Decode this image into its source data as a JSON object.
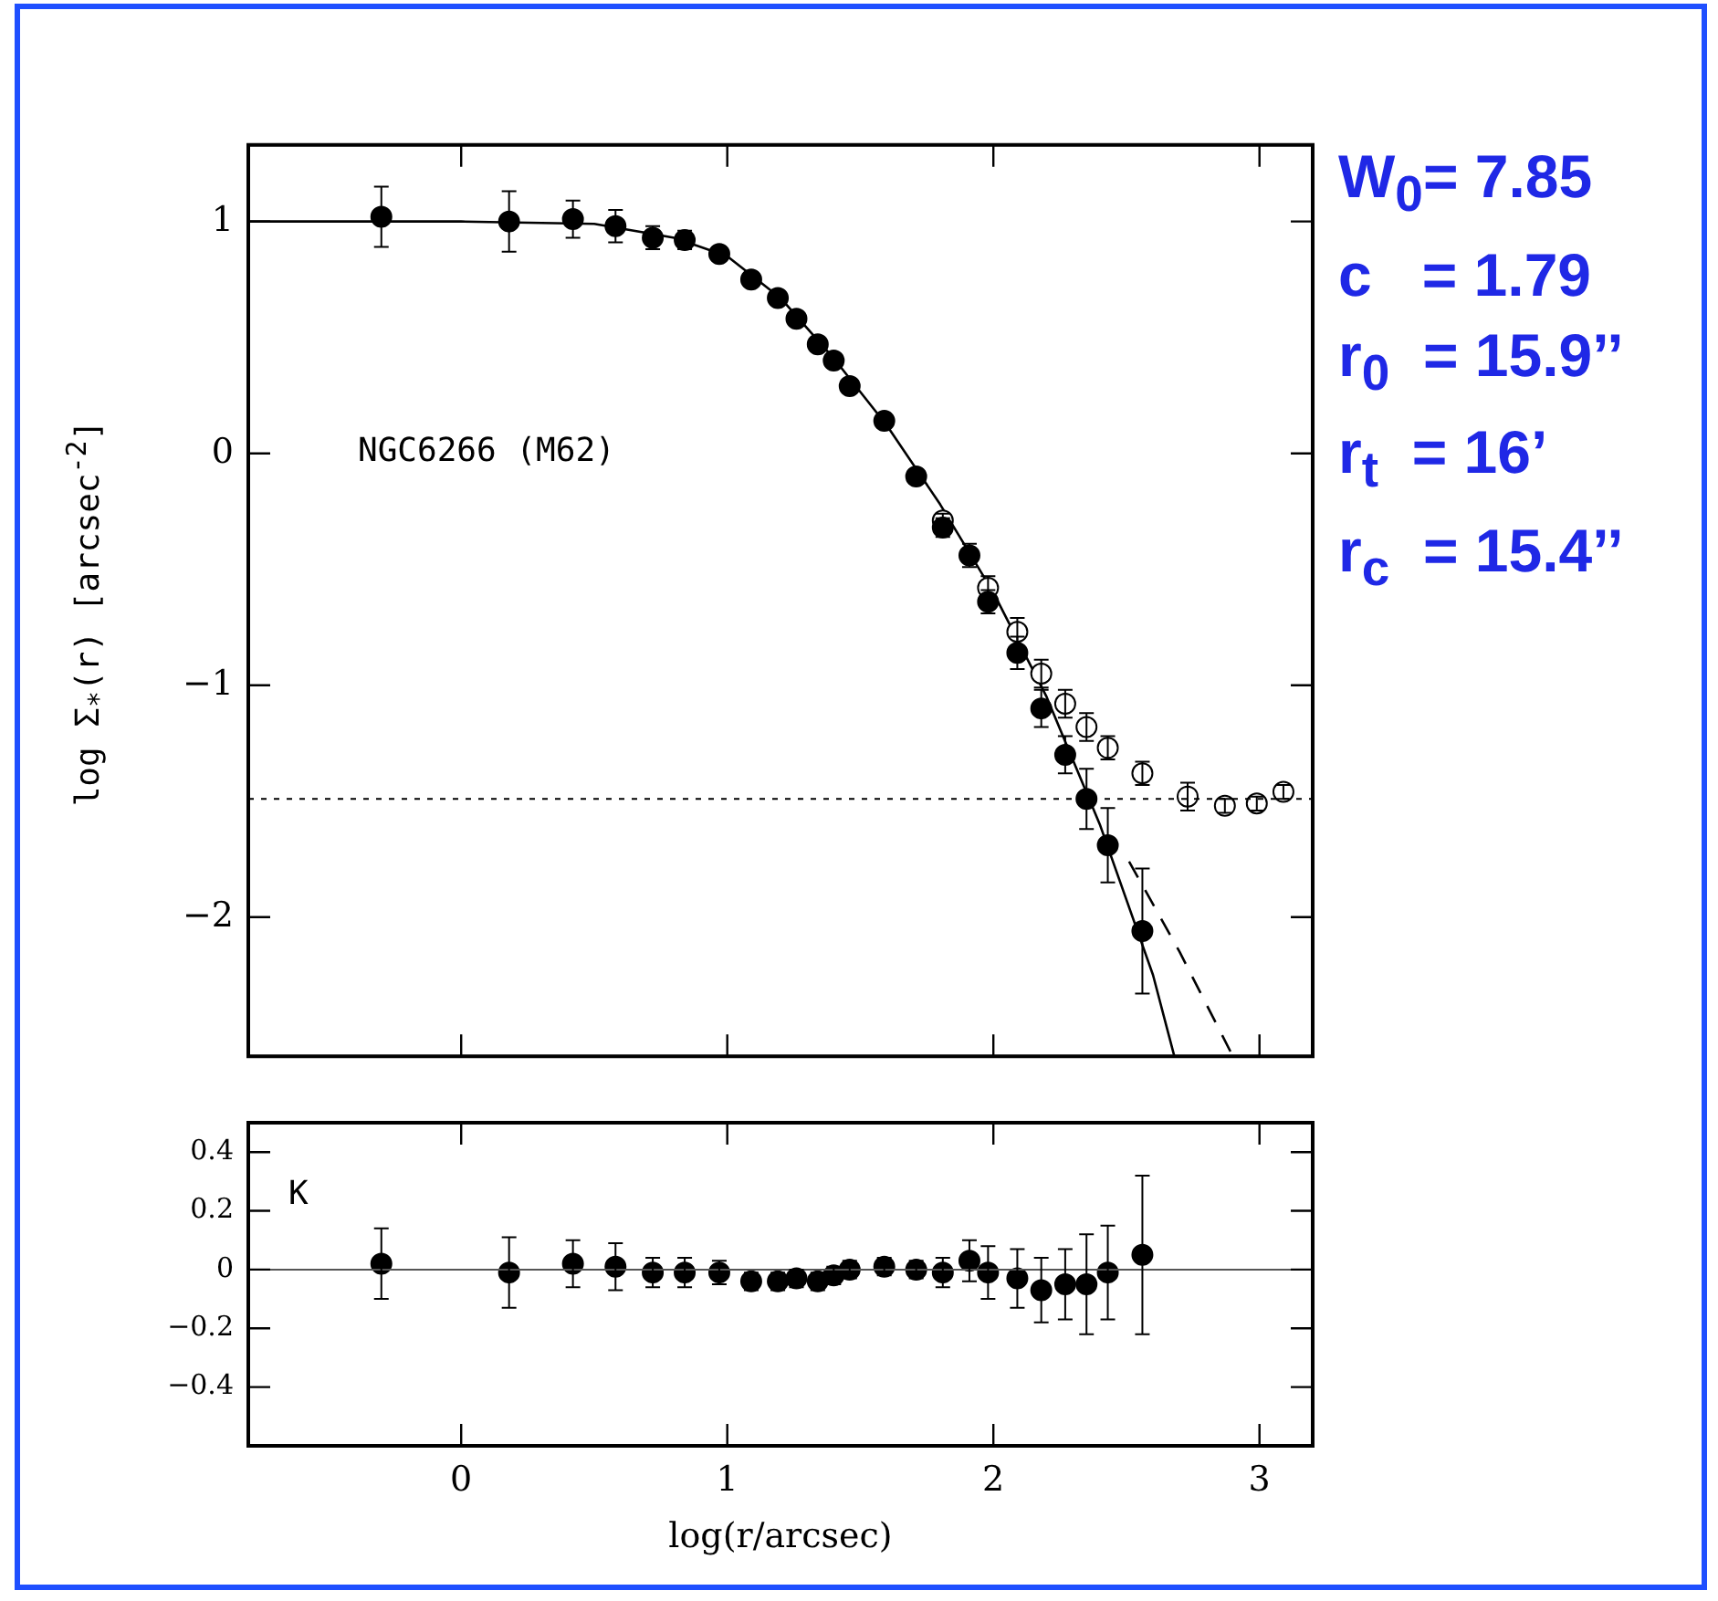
{
  "chart_data": [
    {
      "type": "scatter",
      "ylabel": "log Σ$_{*}$(r) [arcsec$^{-2}$]",
      "xlim": [
        -0.8,
        3.2
      ],
      "xticks": [
        0,
        1,
        2,
        3
      ],
      "ylim": [
        -2.6,
        1.33
      ],
      "yticks": [
        1,
        0,
        {
          "value": -1,
          "label": "−1"
        },
        {
          "value": -2,
          "label": "−2"
        }
      ],
      "tick_labels": "y",
      "marker": "circle",
      "grid": false,
      "legend": false,
      "annotations": [
        "NGC6266 (M62)",
        "W$_{0}$= 7.85",
        "c   = 1.79",
        "r$_{0}$  = 15.9’’",
        "r$_{t}$  = 16’",
        "r$_{c}$  = 15.4’’"
      ],
      "ref_lines": [
        {
          "axis": "y",
          "value": -1.49,
          "color": "#000000",
          "line_style": "dotted"
        }
      ],
      "series": [
        {
          "color": "#000000",
          "x": [
            -0.3,
            0.18,
            0.42,
            0.58,
            0.72,
            0.84,
            0.97,
            1.09,
            1.19,
            1.26,
            1.34,
            1.4,
            1.46,
            1.59,
            1.71,
            1.81,
            1.91,
            1.98,
            2.09,
            2.18,
            2.27,
            2.35,
            2.43,
            2.56
          ],
          "values": [
            1.02,
            1.0,
            1.01,
            0.98,
            0.93,
            0.92,
            0.86,
            0.75,
            0.67,
            0.58,
            0.47,
            0.4,
            0.29,
            0.14,
            -0.1,
            -0.32,
            -0.44,
            -0.64,
            -0.86,
            -1.1,
            -1.3,
            -1.49,
            -1.69,
            -2.06
          ],
          "errors": [
            0.13,
            0.13,
            0.08,
            0.07,
            0.05,
            0.04,
            0.03,
            0.03,
            0.03,
            0.03,
            0.03,
            0.03,
            0.03,
            0.03,
            0.03,
            0.04,
            0.05,
            0.05,
            0.07,
            0.08,
            0.08,
            0.13,
            0.16,
            0.27
          ]
        },
        {
          "color": "#000000",
          "x": [
            1.81,
            1.98,
            2.09,
            2.18,
            2.27,
            2.35,
            2.43,
            2.56,
            2.73,
            2.87,
            2.99,
            3.09
          ],
          "values": [
            -0.29,
            -0.58,
            -0.77,
            -0.95,
            -1.08,
            -1.18,
            -1.27,
            -1.38,
            -1.48,
            -1.52,
            -1.51,
            -1.46
          ],
          "errors": [
            0.03,
            0.05,
            0.06,
            0.06,
            0.06,
            0.06,
            0.05,
            0.05,
            0.06,
            0.03,
            0.03,
            0.03
          ]
        },
        {
          "type": "line",
          "color": "#000000",
          "marker": "none",
          "x": [
            -0.8,
            0,
            0.5,
            0.8,
            1.0,
            1.2,
            1.4,
            1.6,
            1.8,
            2.0,
            2.2,
            2.4,
            2.6,
            2.68
          ],
          "values": [
            1.0,
            1.0,
            0.99,
            0.93,
            0.85,
            0.67,
            0.41,
            0.12,
            -0.22,
            -0.6,
            -1.05,
            -1.6,
            -2.25,
            -2.6
          ]
        },
        {
          "type": "line",
          "color": "#000000",
          "marker": "none",
          "line_style": "dashed",
          "x": [
            2.51,
            2.7,
            2.9
          ],
          "values": [
            -1.76,
            -2.15,
            -2.6
          ]
        }
      ]
    },
    {
      "type": "scatter",
      "xlabel": "log(r/arcsec)",
      "xlim": [
        -0.8,
        3.2
      ],
      "xticks": [
        0,
        1,
        2,
        3
      ],
      "ylim": [
        -0.6,
        0.5
      ],
      "yticks": [
        0.4,
        0.2,
        0,
        {
          "value": -0.2,
          "label": "−0.2"
        },
        {
          "value": -0.4,
          "label": "−0.4"
        }
      ],
      "marker": "circle",
      "grid": false,
      "legend": false,
      "annotations": [
        "K"
      ],
      "ref_lines": [
        {
          "axis": "y",
          "value": 0,
          "color": "#555555",
          "line_style": "solid"
        }
      ],
      "series": [
        {
          "color": "#000000",
          "x": [
            -0.3,
            0.18,
            0.42,
            0.58,
            0.72,
            0.84,
            0.97,
            1.09,
            1.19,
            1.26,
            1.34,
            1.4,
            1.46,
            1.59,
            1.71,
            1.81,
            1.91,
            1.98,
            2.09,
            2.18,
            2.27,
            2.35,
            2.43,
            2.56
          ],
          "values": [
            0.02,
            -0.01,
            0.02,
            0.01,
            -0.01,
            -0.01,
            -0.01,
            -0.04,
            -0.04,
            -0.03,
            -0.04,
            -0.02,
            0.0,
            0.01,
            0.0,
            -0.01,
            0.03,
            -0.01,
            -0.03,
            -0.07,
            -0.05,
            -0.05,
            -0.01,
            0.05
          ],
          "errors": [
            0.12,
            0.12,
            0.08,
            0.08,
            0.05,
            0.05,
            0.04,
            0.03,
            0.03,
            0.03,
            0.03,
            0.03,
            0.03,
            0.03,
            0.03,
            0.05,
            0.07,
            0.09,
            0.1,
            0.11,
            0.12,
            0.17,
            0.16,
            0.27
          ]
        }
      ]
    }
  ]
}
